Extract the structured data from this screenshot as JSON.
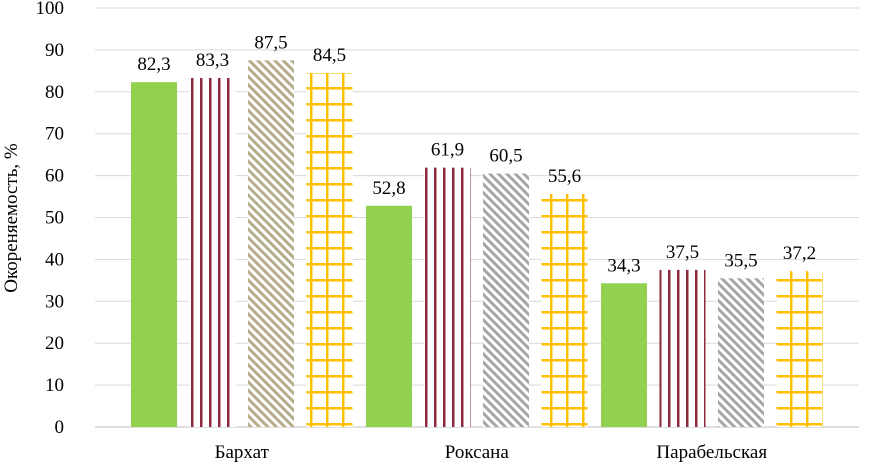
{
  "chart_data": {
    "type": "bar",
    "title": "",
    "xlabel": "",
    "ylabel": "Окореняемость, %",
    "ylim": [
      0,
      100
    ],
    "ytick_step": 10,
    "grid": true,
    "categories": [
      "Бархат",
      "Роксана",
      "Парабельская"
    ],
    "series": [
      {
        "name": "Series 1",
        "pattern": "solid",
        "color": "#92d050",
        "values": [
          82.3,
          52.8,
          34.3
        ],
        "labels": [
          "82,3",
          "52,8",
          "34,3"
        ]
      },
      {
        "name": "Series 2",
        "pattern": "vertical-lines",
        "color": "#8b2a3a",
        "values": [
          83.3,
          61.9,
          37.5
        ],
        "labels": [
          "83,3",
          "61,9",
          "37,5"
        ]
      },
      {
        "name": "Series 3",
        "pattern": "diagonal",
        "colors_by_category": [
          "#b5ad8c",
          "#a6a6a6",
          "#a6a6a6"
        ],
        "values": [
          87.5,
          60.5,
          35.5
        ],
        "labels": [
          "87,5",
          "60,5",
          "35,5"
        ]
      },
      {
        "name": "Series 4",
        "pattern": "grid",
        "color": "#ffc000",
        "values": [
          84.5,
          55.6,
          37.2
        ],
        "labels": [
          "84,5",
          "55,6",
          "37,2"
        ]
      }
    ]
  }
}
